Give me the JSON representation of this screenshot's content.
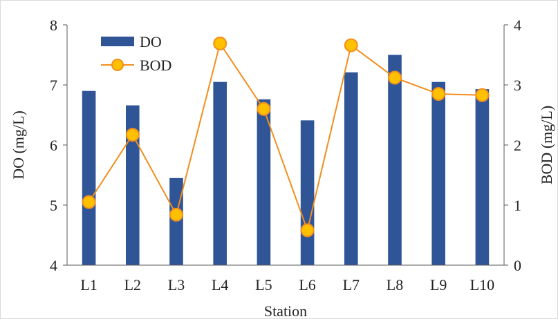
{
  "chart_data": {
    "type": "bar",
    "categories": [
      "L1",
      "L2",
      "L3",
      "L4",
      "L5",
      "L6",
      "L7",
      "L8",
      "L9",
      "L10"
    ],
    "series": [
      {
        "name": "DO",
        "kind": "bar",
        "axis": "left",
        "color": "#2f5597",
        "values": [
          6.9,
          6.66,
          5.45,
          7.05,
          6.76,
          6.41,
          7.21,
          7.5,
          7.05,
          6.93
        ]
      },
      {
        "name": "BOD",
        "kind": "line",
        "axis": "right",
        "color": "#f28e1c",
        "marker_color": "#ffc000",
        "values": [
          1.05,
          2.17,
          0.84,
          3.69,
          2.6,
          0.58,
          3.66,
          3.12,
          2.85,
          2.83
        ]
      }
    ],
    "xlabel": "Station",
    "ylabel": "DO (mg/L)",
    "y2label": "BOD (mg/L)",
    "ylim": [
      4,
      8
    ],
    "y2lim": [
      0,
      4
    ],
    "yticks": [
      "4",
      "5",
      "6",
      "7",
      "8"
    ],
    "y2ticks": [
      "0",
      "1",
      "2",
      "3",
      "4"
    ],
    "grid": false,
    "legend": "top-left"
  }
}
